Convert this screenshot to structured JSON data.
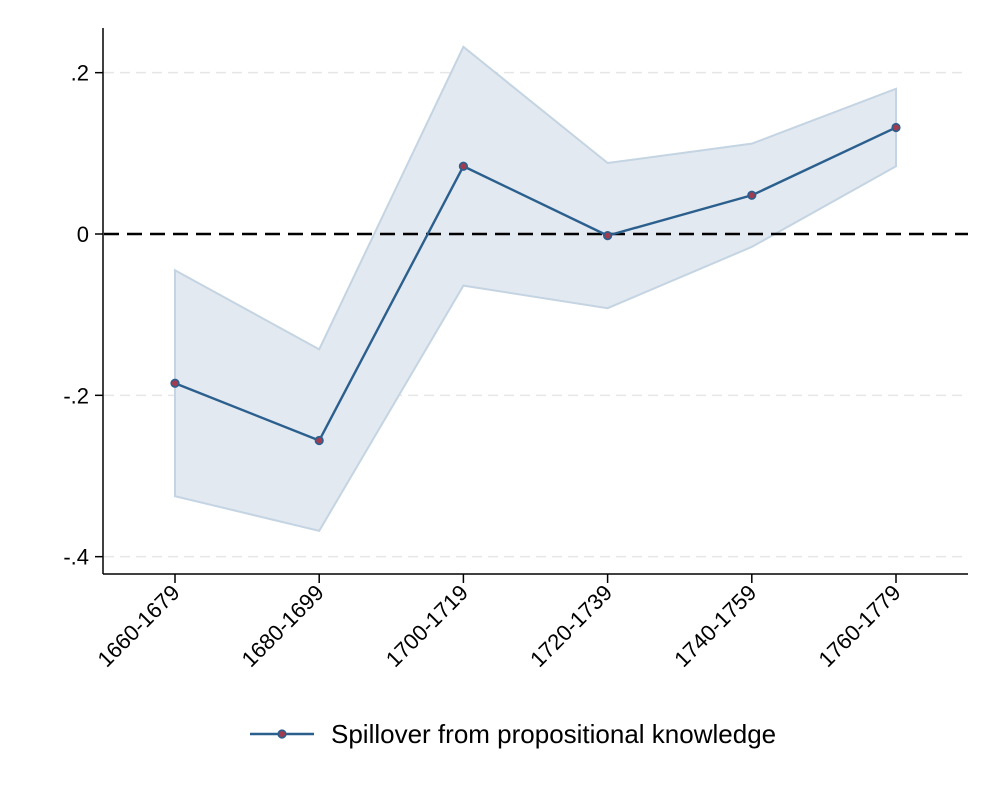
{
  "chart_data": {
    "type": "line",
    "title": "",
    "xlabel": "",
    "ylabel": "",
    "categories": [
      "1660-1679",
      "1680-1699",
      "1700-1719",
      "1720-1739",
      "1740-1759",
      "1760-1779"
    ],
    "series": [
      {
        "name": "Spillover from propositional knowledge",
        "values": [
          -0.185,
          -0.256,
          0.084,
          -0.002,
          0.048,
          0.132
        ],
        "ci_upper": [
          -0.045,
          -0.143,
          0.232,
          0.088,
          0.112,
          0.18
        ],
        "ci_lower": [
          -0.325,
          -0.368,
          -0.064,
          -0.092,
          -0.016,
          0.084
        ],
        "color": "#2b5f8e",
        "marker_color": "#a23b4e"
      }
    ],
    "ylim": [
      -0.42,
      0.255
    ],
    "yticks": [
      0.2,
      0,
      -0.2,
      -0.4
    ],
    "ytick_labels": [
      ".2",
      "0",
      "-.2",
      "-.4"
    ],
    "reference_line": 0,
    "ci_fill_color": "#e2e9f0",
    "ci_edge_color": "#c4d4e2",
    "grid": true,
    "legend_position": "bottom"
  }
}
